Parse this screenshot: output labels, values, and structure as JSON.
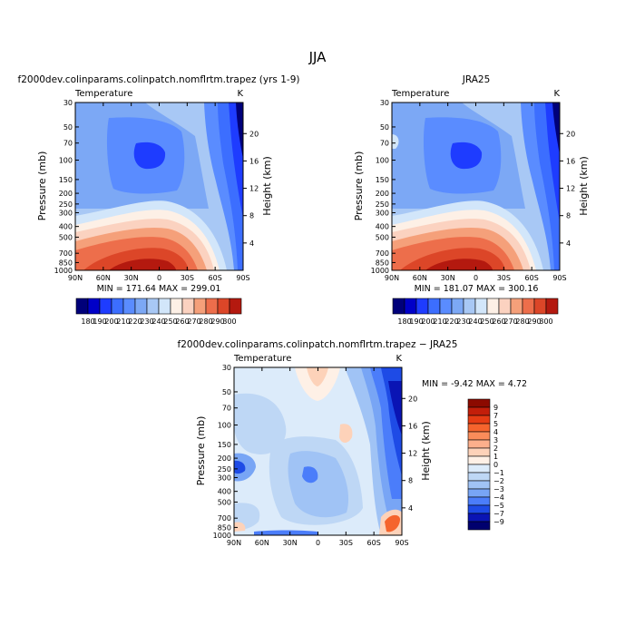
{
  "page": {
    "season_title": "JJA"
  },
  "chart_data": [
    {
      "type": "heatmap",
      "id": "model",
      "title": "f2000dev.colinparams.colinpatch.nomflrtm.trapez (yrs 1-9)",
      "subtitle_left": "Temperature",
      "subtitle_right": "K",
      "xlabel": "",
      "ylabel": "Pressure (mb)",
      "y2label": "Height (km)",
      "x_ticks": [
        "90N",
        "60N",
        "30N",
        "0",
        "30S",
        "60S",
        "90S"
      ],
      "y_ticks": [
        "30",
        "50",
        "70",
        "100",
        "150",
        "200",
        "250",
        "300",
        "400",
        "500",
        "700",
        "850",
        "1000"
      ],
      "y2_ticks": [
        "20",
        "16",
        "12",
        "8",
        "4"
      ],
      "stats": "MIN = 171.64   MAX = 299.01",
      "colorbar_labels": [
        "180",
        "190",
        "200",
        "210",
        "220",
        "230",
        "240",
        "250",
        "260",
        "270",
        "280",
        "290",
        "300"
      ],
      "colorbar_levels": [
        180,
        190,
        200,
        210,
        220,
        230,
        240,
        250,
        260,
        270,
        280,
        290,
        300
      ],
      "colorbar_colors": [
        "#00007a",
        "#0000c8",
        "#1e3cff",
        "#3c6eff",
        "#5a8cff",
        "#7ca8f5",
        "#a8c8f5",
        "#d2e6fa",
        "#fdf0e6",
        "#fbd2c0",
        "#f5a07a",
        "#ed6e4b",
        "#dc4628",
        "#b4190f"
      ],
      "min": 171.64,
      "max": 299.01
    },
    {
      "type": "heatmap",
      "id": "obs",
      "title": "JRA25",
      "subtitle_left": "Temperature",
      "subtitle_right": "K",
      "xlabel": "",
      "ylabel": "Pressure (mb)",
      "y2label": "Height (km)",
      "x_ticks": [
        "90N",
        "60N",
        "30N",
        "0",
        "30S",
        "60S",
        "90S"
      ],
      "y_ticks": [
        "30",
        "50",
        "70",
        "100",
        "150",
        "200",
        "250",
        "300",
        "400",
        "500",
        "700",
        "850",
        "1000"
      ],
      "y2_ticks": [
        "20",
        "16",
        "12",
        "8",
        "4"
      ],
      "stats": "MIN = 181.07   MAX = 300.16",
      "colorbar_labels": [
        "180",
        "190",
        "200",
        "210",
        "220",
        "230",
        "240",
        "250",
        "260",
        "270",
        "280",
        "290",
        "300"
      ],
      "min": 181.07,
      "max": 300.16
    },
    {
      "type": "heatmap",
      "id": "diff",
      "title": "f2000dev.colinparams.colinpatch.nomflrtm.trapez − JRA25",
      "subtitle_left": "Temperature",
      "subtitle_right": "K",
      "ylabel": "Pressure (mb)",
      "y2label": "Height (km)",
      "x_ticks": [
        "90N",
        "60N",
        "30N",
        "0",
        "30S",
        "60S",
        "90S"
      ],
      "y_ticks": [
        "30",
        "50",
        "70",
        "100",
        "150",
        "200",
        "250",
        "300",
        "400",
        "500",
        "700",
        "850",
        "1000"
      ],
      "y2_ticks": [
        "20",
        "16",
        "12",
        "8",
        "4"
      ],
      "stats": "MIN =  -9.42   MAX =   4.72",
      "colorbar_labels": [
        "9",
        "7",
        "5",
        "4",
        "3",
        "2",
        "1",
        "0",
        "−1",
        "−2",
        "−3",
        "−4",
        "−5",
        "−7",
        "−9"
      ],
      "colorbar_colors": [
        "#8c0a00",
        "#c31e0a",
        "#e63c14",
        "#f5642d",
        "#fa8c5a",
        "#fcaf8c",
        "#fdd2b9",
        "#fef0e6",
        "#dcebfa",
        "#bed7f5",
        "#a0c3f5",
        "#78a5f5",
        "#4b7dfa",
        "#1e4be6",
        "#0a14b4",
        "#00006e"
      ],
      "min": -9.42,
      "max": 4.72
    }
  ]
}
